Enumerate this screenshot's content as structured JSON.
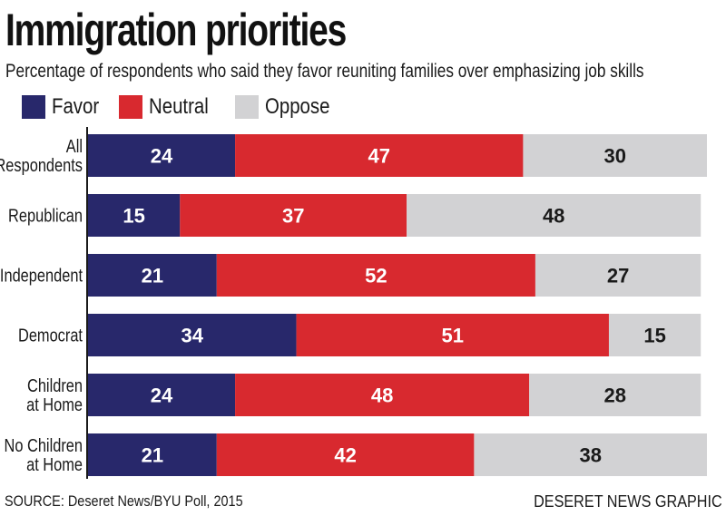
{
  "title": "Immigration priorities",
  "subtitle": "Percentage of respondents who said they favor reuniting families over emphasizing job skills",
  "source": "SOURCE: Deseret News/BYU Poll, 2015",
  "credit": "DESERET NEWS GRAPHIC",
  "colors": {
    "favor": "#28286b",
    "neutral": "#d8292f",
    "oppose": "#d2d2d4",
    "label_dark_bg": "#ffffff",
    "label_light_bg": "#1a1a1a"
  },
  "chart_data": {
    "type": "bar",
    "orientation": "horizontal",
    "stacked": true,
    "title": "Immigration priorities",
    "subtitle": "Percentage of respondents who said they favor reuniting families over emphasizing job skills",
    "xlim": [
      0,
      101
    ],
    "legend_position": "top-left",
    "grid": false,
    "categories": [
      [
        "All",
        "Respondents"
      ],
      [
        "Republican"
      ],
      [
        "Independent"
      ],
      [
        "Democrat"
      ],
      [
        "Children",
        "at Home"
      ],
      [
        "No Children",
        "at Home"
      ]
    ],
    "series": [
      {
        "name": "Favor",
        "key": "favor",
        "values": [
          24,
          15,
          21,
          34,
          24,
          21
        ]
      },
      {
        "name": "Neutral",
        "key": "neutral",
        "values": [
          47,
          37,
          52,
          51,
          48,
          42
        ]
      },
      {
        "name": "Oppose",
        "key": "oppose",
        "values": [
          30,
          48,
          27,
          15,
          28,
          38
        ]
      }
    ]
  }
}
